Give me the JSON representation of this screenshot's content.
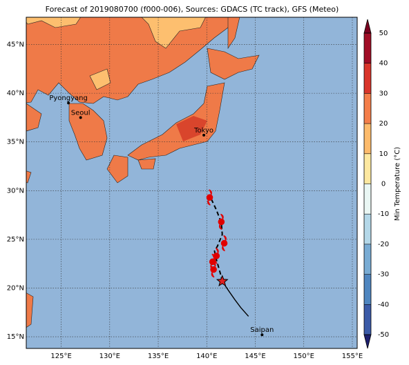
{
  "map": {
    "title": "Forecast of 2019080700 (f000-006), Sources: GDACS (TC track), GFS (Meteo)",
    "xlim": [
      121.4,
      155.5
    ],
    "ylim": [
      13.8,
      47.8
    ],
    "xticks": [
      {
        "value": 125,
        "label": "125°E"
      },
      {
        "value": 130,
        "label": "130°E"
      },
      {
        "value": 135,
        "label": "135°E"
      },
      {
        "value": 140,
        "label": "140°E"
      },
      {
        "value": 145,
        "label": "145°E"
      },
      {
        "value": 150,
        "label": "150°E"
      },
      {
        "value": 155,
        "label": "155°E"
      }
    ],
    "yticks": [
      {
        "value": 15,
        "label": "15°N"
      },
      {
        "value": 20,
        "label": "20°N"
      },
      {
        "value": 25,
        "label": "25°N"
      },
      {
        "value": 30,
        "label": "30°N"
      },
      {
        "value": 35,
        "label": "35°N"
      },
      {
        "value": 40,
        "label": "40°N"
      },
      {
        "value": 45,
        "label": "45°N"
      }
    ],
    "cities": [
      {
        "name": "Pyongyang",
        "lon": 125.75,
        "lat": 39.0
      },
      {
        "name": "Seoul",
        "lon": 127.0,
        "lat": 37.5
      },
      {
        "name": "Tokyo",
        "lon": 139.7,
        "lat": 35.7
      },
      {
        "name": "Saipan",
        "lon": 145.7,
        "lat": 15.2
      }
    ],
    "track": {
      "lon": [
        144.3,
        143.5,
        142.9,
        142.2,
        141.6,
        141.4,
        141.2,
        141.0,
        140.9,
        140.8,
        141.1,
        141.6,
        141.5,
        141.0,
        140.3
      ],
      "lat": [
        17.1,
        18.0,
        18.8,
        19.8,
        20.7,
        21.5,
        22.2,
        22.9,
        23.3,
        23.8,
        24.3,
        25.5,
        26.7,
        28.0,
        29.5
      ]
    },
    "cyclones": {
      "lon": [
        140.3,
        141.5,
        141.8,
        141.0,
        140.6,
        140.7
      ],
      "lat": [
        29.3,
        26.8,
        24.6,
        23.3,
        22.7,
        21.9
      ]
    },
    "current_position": {
      "lon": 141.6,
      "lat": 20.7
    },
    "colorbar": {
      "label": "Min Temperature (°C)",
      "ticks": [
        -50,
        -40,
        -30,
        -20,
        -10,
        0,
        10,
        20,
        30,
        40,
        50
      ],
      "colors": [
        "#2c2e8c",
        "#3b5ba8",
        "#4f86c0",
        "#79acd4",
        "#b4d8e9",
        "#eaf7f4",
        "#fde8a0",
        "#fdbb6c",
        "#f47e4a",
        "#d9352a",
        "#a00d26"
      ],
      "under": "#1d1f6e",
      "over": "#7a0020"
    }
  }
}
